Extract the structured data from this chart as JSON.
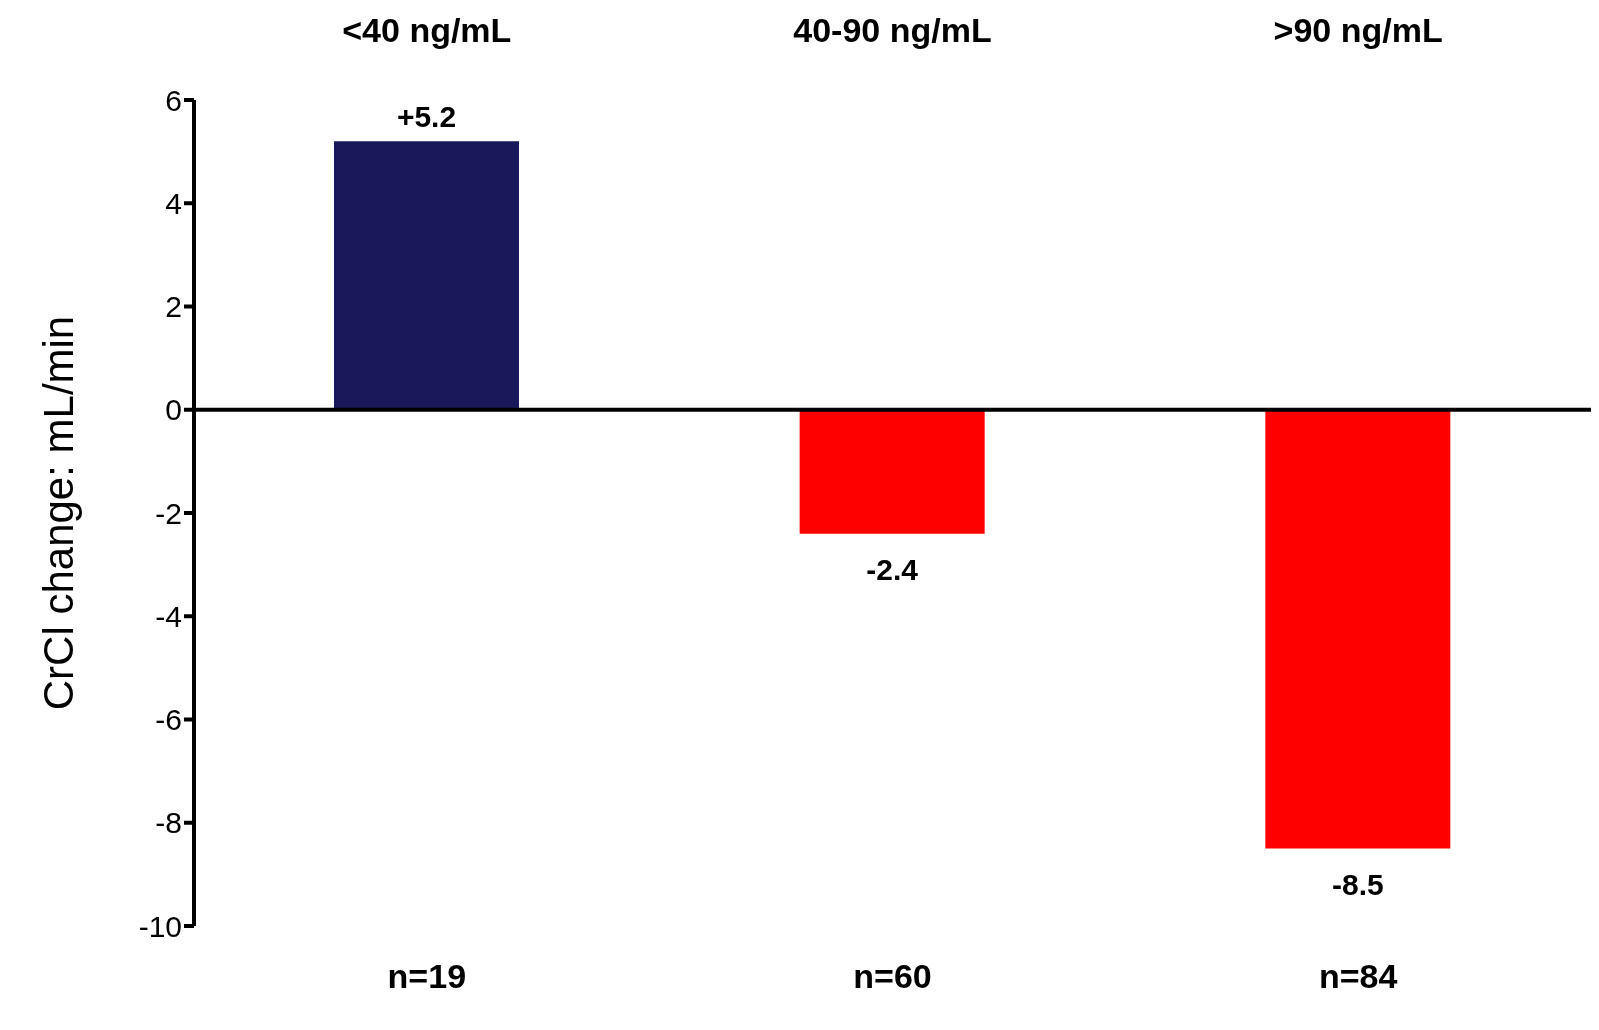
{
  "chart_data": {
    "type": "bar",
    "ylabel": "CrCl change: mL/min",
    "categories": [
      "<40 ng/mL",
      "40-90 ng/mL",
      ">90 ng/mL"
    ],
    "values": [
      5.2,
      -2.4,
      -8.5
    ],
    "colors": [
      "#18185a",
      "#ff0000",
      "#ff0000"
    ],
    "value_labels": [
      "+5.2",
      "-2.4",
      "-8.5"
    ],
    "ylim": [
      -10,
      6
    ],
    "yticks": [
      -10,
      -8,
      -6,
      -4,
      -2,
      0,
      2,
      4,
      6
    ],
    "annotations": [
      "n=19",
      "n=60",
      "n=84"
    ]
  }
}
